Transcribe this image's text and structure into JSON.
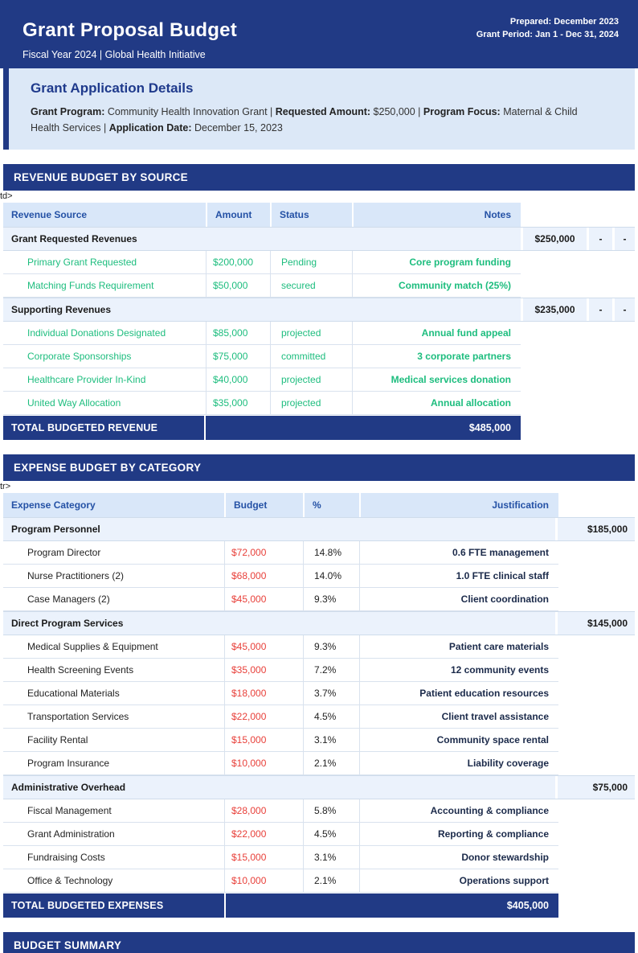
{
  "colors": {
    "navy": "#213a85",
    "panel_bg": "#dce8f7",
    "panel_title": "#1f3a8c",
    "column_header_bg": "#d9e7f9",
    "column_header_text": "#2451a5",
    "group_row_bg": "#ebf2fc",
    "revenue_green": "#1dbd7e",
    "expense_red": "#e8403a",
    "justification_text": "#1b2a4a"
  },
  "header": {
    "title": "Grant Proposal Budget",
    "subtitle": "Fiscal Year 2024 | Global Health Initiative",
    "prepared": "Prepared: December 2023",
    "grant_period": "Grant Period: Jan 1 - Dec 31, 2024"
  },
  "details": {
    "title": "Grant Application Details",
    "segments": [
      {
        "label": "Grant Program:",
        "text": " Community Health Innovation Grant | "
      },
      {
        "label": "Requested Amount:",
        "text": " $250,000 | "
      },
      {
        "label": "Program Focus:",
        "text": " Maternal & Child Health Services | "
      },
      {
        "label": "Application Date:",
        "text": " December 15, 2023"
      }
    ]
  },
  "revenue": {
    "section_title": "REVENUE BUDGET BY SOURCE",
    "stray_text": "td>",
    "columns": [
      "Revenue Source",
      "Amount",
      "Status",
      "Notes"
    ],
    "groups": [
      {
        "name": "Grant Requested Revenues",
        "amount": "$250,000",
        "extra": [
          "-",
          "-"
        ],
        "rows": [
          {
            "source": "Primary Grant Requested",
            "amount": "$200,000",
            "status": "Pending",
            "notes": "Core program funding"
          },
          {
            "source": "Matching Funds Requirement",
            "amount": "$50,000",
            "status": "secured",
            "notes": "Community match (25%)"
          }
        ]
      },
      {
        "name": "Supporting Revenues",
        "amount": "$235,000",
        "extra": [
          "-",
          "-"
        ],
        "rows": [
          {
            "source": "Individual Donations Designated",
            "amount": "$85,000",
            "status": "projected",
            "notes": "Annual fund appeal"
          },
          {
            "source": "Corporate Sponsorships",
            "amount": "$75,000",
            "status": "committed",
            "notes": "3 corporate partners"
          },
          {
            "source": "Healthcare Provider In-Kind",
            "amount": "$40,000",
            "status": "projected",
            "notes": "Medical services donation"
          },
          {
            "source": "United Way Allocation",
            "amount": "$35,000",
            "status": "projected",
            "notes": "Annual allocation"
          }
        ]
      }
    ],
    "total": {
      "label": "TOTAL BUDGETED REVENUE",
      "amount": "$485,000"
    }
  },
  "expense": {
    "section_title": "EXPENSE BUDGET BY CATEGORY",
    "stray_text": "tr>",
    "columns": [
      "Expense Category",
      "Budget",
      "%",
      "Justification"
    ],
    "groups": [
      {
        "name": "Program Personnel",
        "amount": "$185,000",
        "rows": [
          {
            "category": "Program Director",
            "budget": "$72,000",
            "pct": "14.8%",
            "justification": "0.6 FTE management"
          },
          {
            "category": "Nurse Practitioners (2)",
            "budget": "$68,000",
            "pct": "14.0%",
            "justification": "1.0 FTE clinical staff"
          },
          {
            "category": "Case Managers (2)",
            "budget": "$45,000",
            "pct": "9.3%",
            "justification": "Client coordination"
          }
        ]
      },
      {
        "name": "Direct Program Services",
        "amount": "$145,000",
        "rows": [
          {
            "category": "Medical Supplies & Equipment",
            "budget": "$45,000",
            "pct": "9.3%",
            "justification": "Patient care materials"
          },
          {
            "category": "Health Screening Events",
            "budget": "$35,000",
            "pct": "7.2%",
            "justification": "12 community events"
          },
          {
            "category": "Educational Materials",
            "budget": "$18,000",
            "pct": "3.7%",
            "justification": "Patient education resources"
          },
          {
            "category": "Transportation Services",
            "budget": "$22,000",
            "pct": "4.5%",
            "justification": "Client travel assistance"
          },
          {
            "category": "Facility Rental",
            "budget": "$15,000",
            "pct": "3.1%",
            "justification": "Community space rental"
          },
          {
            "category": "Program Insurance",
            "budget": "$10,000",
            "pct": "2.1%",
            "justification": "Liability coverage"
          }
        ]
      },
      {
        "name": "Administrative Overhead",
        "amount": "$75,000",
        "rows": [
          {
            "category": "Fiscal Management",
            "budget": "$28,000",
            "pct": "5.8%",
            "justification": "Accounting & compliance"
          },
          {
            "category": "Grant Administration",
            "budget": "$22,000",
            "pct": "4.5%",
            "justification": "Reporting & compliance"
          },
          {
            "category": "Fundraising Costs",
            "budget": "$15,000",
            "pct": "3.1%",
            "justification": "Donor stewardship"
          },
          {
            "category": "Office & Technology",
            "budget": "$10,000",
            "pct": "2.1%",
            "justification": "Operations support"
          }
        ]
      }
    ],
    "total": {
      "label": "TOTAL BUDGETED EXPENSES",
      "amount": "$405,000"
    }
  },
  "summary": {
    "section_title": "BUDGET SUMMARY"
  }
}
